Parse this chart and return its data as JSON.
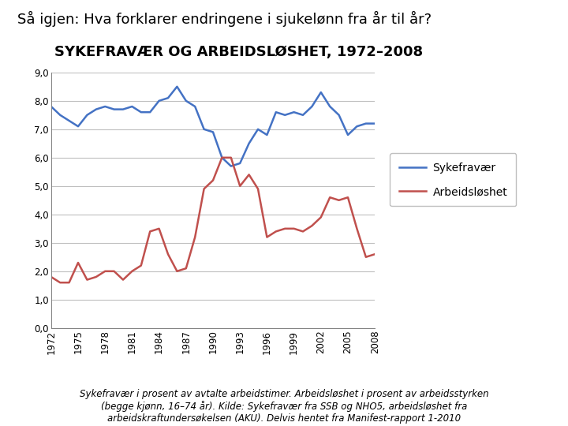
{
  "title_main": "Så igjen: Hva forklarer endringene i sjukelønn fra år til år?",
  "title_sub": "SYKEFRAVÆR OG ARBEIDSLØSHET, 1972–2008",
  "caption": "Sykefravær i prosent av avtalte arbeidstimer. Arbeidsløshet i prosent av arbeidsstyrken\n(begge kjønn, 16–74 år). Kilde: Sykefravær fra SSB og NHO5, arbeidsløshet fra\narbeidskraftundersøkelsen (AKU). Delvis hentet fra Manifest-rapport 1-2010",
  "sykefravær": {
    "years": [
      1972,
      1973,
      1974,
      1975,
      1976,
      1977,
      1978,
      1979,
      1980,
      1981,
      1982,
      1983,
      1984,
      1985,
      1986,
      1987,
      1988,
      1989,
      1990,
      1991,
      1992,
      1993,
      1994,
      1995,
      1996,
      1997,
      1998,
      1999,
      2000,
      2001,
      2002,
      2003,
      2004,
      2005,
      2006,
      2007,
      2008
    ],
    "values": [
      7.8,
      7.5,
      7.3,
      7.1,
      7.5,
      7.7,
      7.8,
      7.7,
      7.7,
      7.8,
      7.6,
      7.6,
      8.0,
      8.1,
      8.5,
      8.0,
      7.8,
      7.0,
      6.9,
      6.0,
      5.7,
      5.8,
      6.5,
      7.0,
      6.8,
      7.6,
      7.5,
      7.6,
      7.5,
      7.8,
      8.3,
      7.8,
      7.5,
      6.8,
      7.1,
      7.2,
      7.2
    ],
    "color": "#4472C4",
    "label": "Sykefravær"
  },
  "arbeidsløshet": {
    "years": [
      1972,
      1973,
      1974,
      1975,
      1976,
      1977,
      1978,
      1979,
      1980,
      1981,
      1982,
      1983,
      1984,
      1985,
      1986,
      1987,
      1988,
      1989,
      1990,
      1991,
      1992,
      1993,
      1994,
      1995,
      1996,
      1997,
      1998,
      1999,
      2000,
      2001,
      2002,
      2003,
      2004,
      2005,
      2006,
      2007,
      2008
    ],
    "values": [
      1.8,
      1.6,
      1.6,
      2.3,
      1.7,
      1.8,
      2.0,
      2.0,
      1.7,
      2.0,
      2.2,
      3.4,
      3.5,
      2.6,
      2.0,
      2.1,
      3.2,
      4.9,
      5.2,
      6.0,
      6.0,
      5.0,
      5.4,
      4.9,
      3.2,
      3.4,
      3.5,
      3.5,
      3.4,
      3.6,
      3.9,
      4.6,
      4.5,
      4.6,
      3.5,
      2.5,
      2.6
    ],
    "color": "#C0504D",
    "label": "Arbeidsløshet"
  },
  "ylim": [
    0.0,
    9.0
  ],
  "yticks": [
    0.0,
    1.0,
    2.0,
    3.0,
    4.0,
    5.0,
    6.0,
    7.0,
    8.0,
    9.0
  ],
  "xtick_years": [
    1972,
    1975,
    1978,
    1981,
    1984,
    1987,
    1990,
    1993,
    1996,
    1999,
    2002,
    2005,
    2008
  ],
  "background_color": "#FFFFFF",
  "plot_bg_color": "#FFFFFF",
  "grid_color": "#BFBFBF",
  "title_main_fontsize": 13,
  "title_sub_fontsize": 13,
  "caption_fontsize": 8.5,
  "legend_fontsize": 10,
  "tick_fontsize": 8.5
}
